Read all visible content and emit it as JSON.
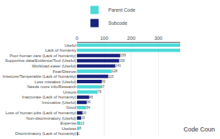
{
  "chart_data": {
    "type": "bar",
    "orientation": "horizontal",
    "categories": [
      "Useful",
      "Lack of humanity",
      "Poor human care (Lack of humanity)",
      "Supportive data/Evidence/Tool (Useful)",
      "Workload easer (Useful)",
      "Fear/Distrust",
      "Insecure/Tamperable (Lack of humanity)",
      "Less mistakes (Useful)",
      "Needs more info/Research",
      "Unsure",
      "Inaccurate (Lack of humanity)",
      "Innovative (Useful)",
      "Good",
      "Loss of human jobs (Lack of humanity)",
      "Non-discriminatory (Useful)",
      "Expense",
      "Useless",
      "Discriminatory (Lack of humanity)"
    ],
    "series": [
      {
        "name": "Parent Code",
        "color": "#4dd9d9",
        "values": [
          380,
          380,
          null,
          null,
          null,
          128,
          null,
          null,
          87,
          76,
          null,
          null,
          34,
          null,
          null,
          13,
          8,
          null
        ],
        "value_labels": [
          null,
          null,
          null,
          null,
          null,
          "128",
          null,
          null,
          "87",
          "76",
          null,
          null,
          "34",
          null,
          null,
          "13",
          "8",
          null
        ]
      },
      {
        "name": "Subcode",
        "color": "#1a237e",
        "values": [
          null,
          null,
          159,
          155,
          141,
          null,
          115,
          91,
          null,
          null,
          45,
          36,
          null,
          20,
          15,
          null,
          null,
          1
        ],
        "value_labels": [
          null,
          null,
          "159",
          "155",
          "141",
          null,
          "115",
          "91",
          null,
          null,
          "45",
          "36",
          null,
          "20",
          "15",
          null,
          null,
          "1"
        ]
      }
    ],
    "xlim": [
      0,
      380
    ],
    "xticks": [
      0,
      100,
      200,
      300
    ],
    "grid": true,
    "legend": "top",
    "data_labels": true,
    "annotations": [
      "Code Coun"
    ]
  }
}
